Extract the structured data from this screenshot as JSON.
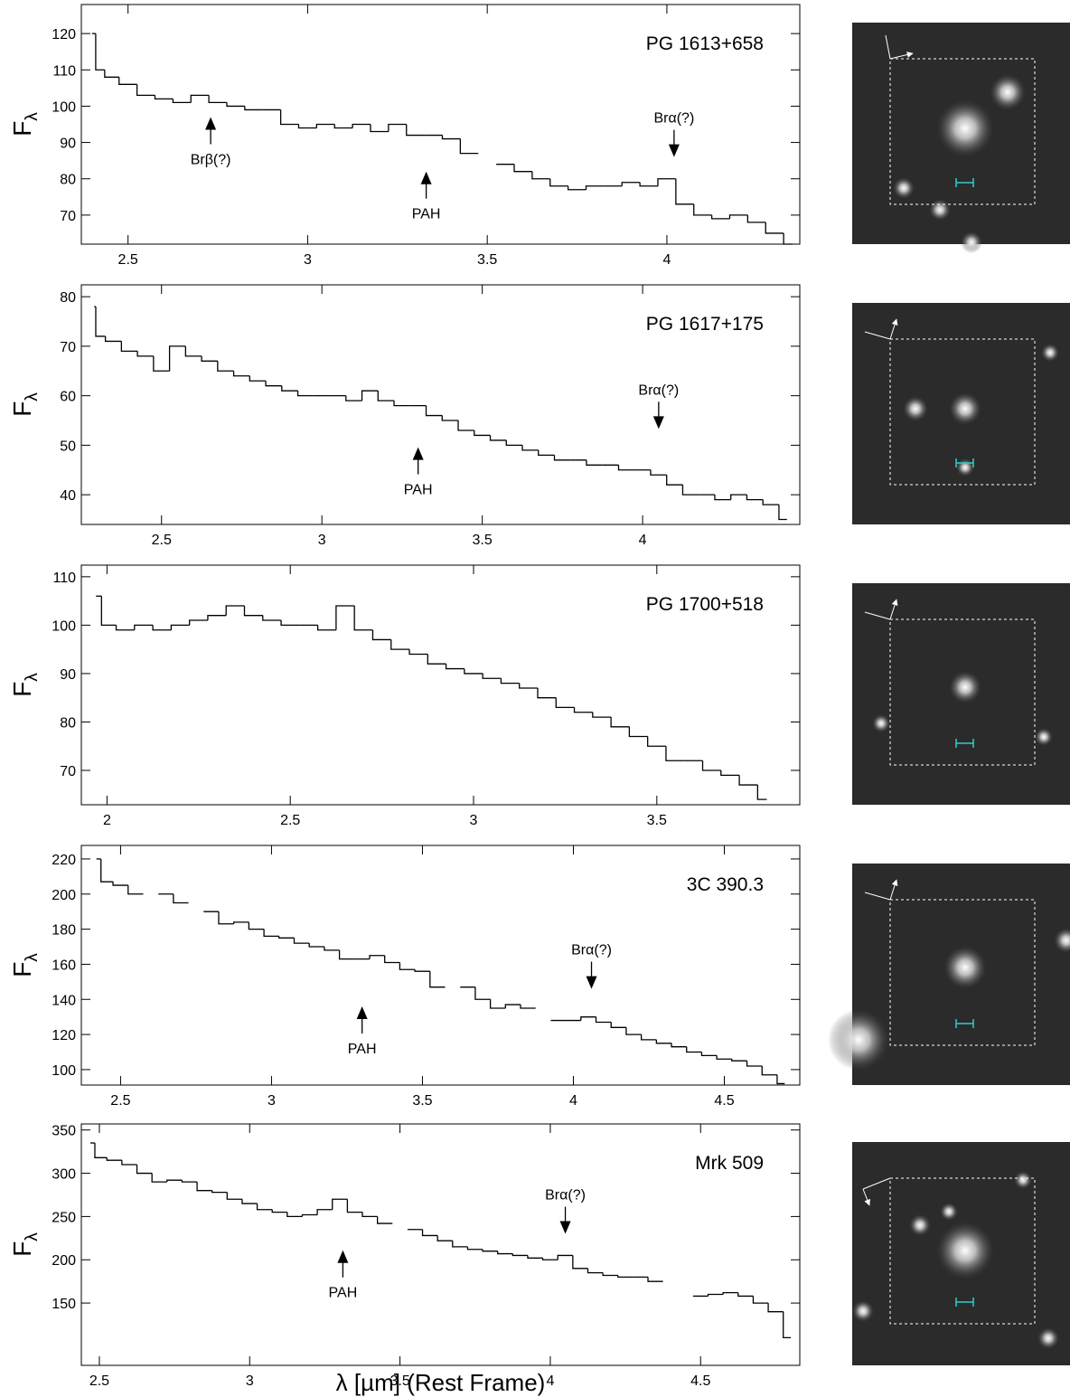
{
  "chart_data": [
    {
      "type": "line",
      "title": "PG 1613+658",
      "ylabel": "F",
      "ylabel_subscript": "λ",
      "x": [
        2.4,
        2.42,
        2.45,
        2.5,
        2.55,
        2.6,
        2.65,
        2.7,
        2.75,
        2.8,
        2.85,
        2.9,
        2.95,
        3.0,
        3.05,
        3.1,
        3.15,
        3.2,
        3.25,
        3.3,
        3.35,
        3.4,
        3.45,
        3.5,
        3.55,
        3.6,
        3.65,
        3.7,
        3.75,
        3.8,
        3.85,
        3.9,
        3.95,
        4.0,
        4.05,
        4.1,
        4.15,
        4.2,
        4.25,
        4.3,
        4.35
      ],
      "values": [
        120,
        110,
        108,
        106,
        103,
        102,
        101,
        103,
        101,
        100,
        99,
        99,
        95,
        94,
        95,
        94,
        95,
        93,
        95,
        92,
        92,
        91,
        87,
        null,
        84,
        82,
        80,
        78,
        77,
        78,
        78,
        79,
        78,
        80,
        73,
        70,
        69,
        70,
        68,
        65,
        62
      ],
      "color": "#000000",
      "xlim": [
        2.37,
        4.37
      ],
      "ylim": [
        62,
        128
      ],
      "xticks": [
        2.5,
        3.0,
        3.5,
        4.0
      ],
      "yticks": [
        70,
        80,
        90,
        100,
        110,
        120
      ],
      "annotations": [
        {
          "text": "Brβ(?)",
          "x": 2.73,
          "y": 97,
          "direction": "up"
        },
        {
          "text": "PAH",
          "x": 3.33,
          "y": 82,
          "direction": "up"
        },
        {
          "text": "Brα(?)",
          "x": 4.02,
          "y": 86,
          "direction": "down"
        }
      ]
    },
    {
      "type": "line",
      "title": "PG 1617+175",
      "ylabel": "F",
      "ylabel_subscript": "λ",
      "x": [
        2.29,
        2.3,
        2.35,
        2.4,
        2.45,
        2.5,
        2.55,
        2.6,
        2.65,
        2.7,
        2.75,
        2.8,
        2.85,
        2.9,
        2.95,
        3.0,
        3.05,
        3.1,
        3.15,
        3.2,
        3.25,
        3.3,
        3.35,
        3.4,
        3.45,
        3.5,
        3.55,
        3.6,
        3.65,
        3.7,
        3.75,
        3.8,
        3.85,
        3.9,
        3.95,
        4.0,
        4.05,
        4.1,
        4.15,
        4.2,
        4.25,
        4.3,
        4.35,
        4.4,
        4.45
      ],
      "values": [
        78,
        72,
        71,
        69,
        68,
        65,
        70,
        68,
        67,
        65,
        64,
        63,
        62,
        61,
        60,
        60,
        60,
        59,
        61,
        59,
        58,
        58,
        56,
        55,
        53,
        52,
        51,
        50,
        49,
        48,
        47,
        47,
        46,
        46,
        45,
        45,
        44,
        42,
        40,
        40,
        39,
        40,
        39,
        38,
        35
      ],
      "color": "#000000",
      "xlim": [
        2.25,
        4.49
      ],
      "ylim": [
        34,
        82.4
      ],
      "xticks": [
        2.5,
        3.0,
        3.5,
        4.0
      ],
      "yticks": [
        40,
        50,
        60,
        70,
        80
      ],
      "annotations": [
        {
          "text": "PAH",
          "x": 3.3,
          "y": 49.6,
          "direction": "up"
        },
        {
          "text": "Brα(?)",
          "x": 4.05,
          "y": 53.3,
          "direction": "down"
        }
      ]
    },
    {
      "type": "line",
      "title": "PG 1700+518",
      "ylabel": "F",
      "ylabel_subscript": "λ",
      "x": [
        1.97,
        2.0,
        2.05,
        2.1,
        2.15,
        2.2,
        2.25,
        2.3,
        2.35,
        2.4,
        2.45,
        2.5,
        2.55,
        2.6,
        2.65,
        2.7,
        2.75,
        2.8,
        2.85,
        2.9,
        2.95,
        3.0,
        3.05,
        3.1,
        3.15,
        3.2,
        3.25,
        3.3,
        3.35,
        3.4,
        3.45,
        3.5,
        3.55,
        3.6,
        3.65,
        3.7,
        3.75,
        3.8
      ],
      "values": [
        106,
        100,
        99,
        100,
        99,
        100,
        101,
        102,
        104,
        102,
        101,
        100,
        100,
        99,
        104,
        99,
        97,
        95,
        94,
        92,
        91,
        90,
        89,
        88,
        87,
        85,
        83,
        82,
        81,
        79,
        77,
        75,
        72,
        72,
        70,
        69,
        67,
        64
      ],
      "color": "#000000",
      "xlim": [
        1.93,
        3.89
      ],
      "ylim": [
        62.9,
        112.4
      ],
      "xticks": [
        2.0,
        2.5,
        3.0,
        3.5
      ],
      "yticks": [
        70,
        80,
        90,
        100,
        110
      ],
      "annotations": []
    },
    {
      "type": "line",
      "title": "3C 390.3",
      "ylabel": "F",
      "ylabel_subscript": "λ",
      "x": [
        2.42,
        2.45,
        2.5,
        2.55,
        2.6,
        2.65,
        2.7,
        2.75,
        2.8,
        2.85,
        2.9,
        2.95,
        3.0,
        3.05,
        3.1,
        3.15,
        3.2,
        3.25,
        3.3,
        3.35,
        3.4,
        3.45,
        3.5,
        3.55,
        3.6,
        3.65,
        3.7,
        3.75,
        3.8,
        3.85,
        3.9,
        3.95,
        4.0,
        4.05,
        4.1,
        4.15,
        4.2,
        4.25,
        4.3,
        4.35,
        4.4,
        4.45,
        4.5,
        4.55,
        4.6,
        4.65,
        4.7
      ],
      "values": [
        220,
        207,
        205,
        200,
        null,
        200,
        195,
        null,
        190,
        183,
        184,
        180,
        176,
        175,
        172,
        170,
        168,
        163,
        163,
        165,
        161,
        157,
        156,
        147,
        null,
        147,
        140,
        135,
        137,
        135,
        null,
        128,
        128,
        130,
        127,
        124,
        120,
        117,
        115,
        113,
        110,
        108,
        106,
        105,
        102,
        97,
        92
      ],
      "color": "#000000",
      "xlim": [
        2.37,
        4.75
      ],
      "ylim": [
        91.2,
        227.7
      ],
      "xticks": [
        2.5,
        3.0,
        3.5,
        4.0,
        4.5
      ],
      "yticks": [
        100,
        120,
        140,
        160,
        180,
        200,
        220
      ],
      "annotations": [
        {
          "text": "PAH",
          "x": 3.3,
          "y": 136,
          "direction": "up"
        },
        {
          "text": "Brα(?)",
          "x": 4.06,
          "y": 146,
          "direction": "down"
        }
      ]
    },
    {
      "type": "line",
      "title": "Mrk 509",
      "ylabel": "F",
      "ylabel_subscript": "λ",
      "xlabel": "λ [µm] (Rest Frame)",
      "x": [
        2.47,
        2.5,
        2.55,
        2.6,
        2.65,
        2.7,
        2.75,
        2.8,
        2.85,
        2.9,
        2.95,
        3.0,
        3.05,
        3.1,
        3.15,
        3.2,
        3.25,
        3.3,
        3.35,
        3.4,
        3.45,
        3.5,
        3.55,
        3.6,
        3.65,
        3.7,
        3.75,
        3.8,
        3.85,
        3.9,
        3.95,
        4.0,
        4.05,
        4.1,
        4.15,
        4.2,
        4.25,
        4.3,
        4.35,
        4.4,
        4.45,
        4.5,
        4.55,
        4.6,
        4.65,
        4.7,
        4.75,
        4.8
      ],
      "values": [
        335,
        318,
        315,
        310,
        300,
        290,
        292,
        290,
        280,
        278,
        270,
        265,
        258,
        255,
        250,
        252,
        258,
        270,
        255,
        250,
        242,
        null,
        235,
        228,
        222,
        215,
        212,
        210,
        207,
        205,
        202,
        200,
        205,
        190,
        185,
        182,
        180,
        180,
        175,
        null,
        null,
        158,
        160,
        162,
        158,
        150,
        140,
        110
      ],
      "color": "#000000",
      "xlim": [
        2.44,
        4.83
      ],
      "ylim": [
        78,
        357
      ],
      "xticks": [
        2.5,
        3.0,
        3.5,
        4.0,
        4.5
      ],
      "yticks": [
        150,
        200,
        250,
        300,
        350
      ],
      "annotations": [
        {
          "text": "PAH",
          "x": 3.31,
          "y": 211,
          "direction": "up"
        },
        {
          "text": "Brα(?)",
          "x": 4.05,
          "y": 230,
          "direction": "down"
        }
      ]
    }
  ]
}
